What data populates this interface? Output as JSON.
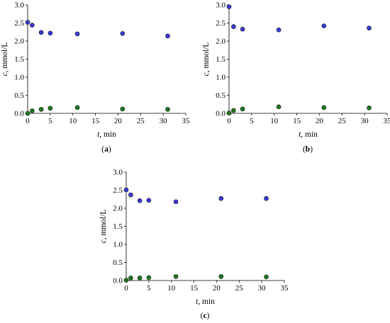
{
  "chart_data": [
    {
      "type": "scatter",
      "panel_label": "a",
      "xlabel_var": "t",
      "xlabel_unit": ", min",
      "ylabel_var": "c",
      "ylabel_unit": ", mmol/L",
      "xlim": [
        0,
        35
      ],
      "ylim": [
        0,
        3.0
      ],
      "xticks": [
        "0",
        "5",
        "10",
        "15",
        "20",
        "25",
        "30",
        "35"
      ],
      "yticks": [
        "0.0",
        "0.5",
        "1.0",
        "1.5",
        "2.0",
        "2.5",
        "3.0"
      ],
      "grid": false,
      "series": [
        {
          "color": "#3b3bdc",
          "x": [
            0,
            1,
            3,
            5,
            11,
            21,
            31
          ],
          "y": [
            2.52,
            2.44,
            2.24,
            2.22,
            2.2,
            2.21,
            2.14
          ]
        },
        {
          "color": "#1c7a1c",
          "x": [
            0,
            1,
            3,
            5,
            11,
            21,
            31
          ],
          "y": [
            0.0,
            0.07,
            0.11,
            0.14,
            0.16,
            0.12,
            0.11
          ]
        }
      ]
    },
    {
      "type": "scatter",
      "panel_label": "b",
      "xlabel_var": "t",
      "xlabel_unit": ", min",
      "ylabel_var": "c",
      "ylabel_unit": ", mmol/L",
      "xlim": [
        0,
        35
      ],
      "ylim": [
        0,
        3.0
      ],
      "xticks": [
        "0",
        "5",
        "10",
        "15",
        "20",
        "25",
        "30",
        "35"
      ],
      "yticks": [
        "0.0",
        "0.5",
        "1.0",
        "1.5",
        "2.0",
        "2.5",
        "3.0"
      ],
      "grid": false,
      "series": [
        {
          "color": "#3b3bdc",
          "x": [
            0,
            1,
            3,
            11,
            21,
            31
          ],
          "y": [
            2.95,
            2.4,
            2.33,
            2.31,
            2.42,
            2.36
          ]
        },
        {
          "color": "#1c7a1c",
          "x": [
            0,
            1,
            3,
            11,
            21,
            31
          ],
          "y": [
            0.01,
            0.08,
            0.12,
            0.18,
            0.16,
            0.15
          ]
        }
      ]
    },
    {
      "type": "scatter",
      "panel_label": "c",
      "xlabel_var": "t",
      "xlabel_unit": ", min",
      "ylabel_var": "c",
      "ylabel_unit": ", mmol/L",
      "xlim": [
        0,
        35
      ],
      "ylim": [
        0,
        3.0
      ],
      "xticks": [
        "0",
        "5",
        "10",
        "15",
        "20",
        "25",
        "30",
        "35"
      ],
      "yticks": [
        "0.0",
        "0.5",
        "1.0",
        "1.5",
        "2.0",
        "2.5",
        "3.0"
      ],
      "grid": false,
      "series": [
        {
          "color": "#3b3bdc",
          "x": [
            0,
            1,
            3,
            5,
            11,
            21,
            31
          ],
          "y": [
            2.51,
            2.37,
            2.21,
            2.22,
            2.18,
            2.27,
            2.27
          ]
        },
        {
          "color": "#1c7a1c",
          "x": [
            0,
            1,
            3,
            5,
            11,
            21,
            31
          ],
          "y": [
            0.01,
            0.07,
            0.07,
            0.08,
            0.11,
            0.11,
            0.1
          ]
        }
      ]
    }
  ]
}
